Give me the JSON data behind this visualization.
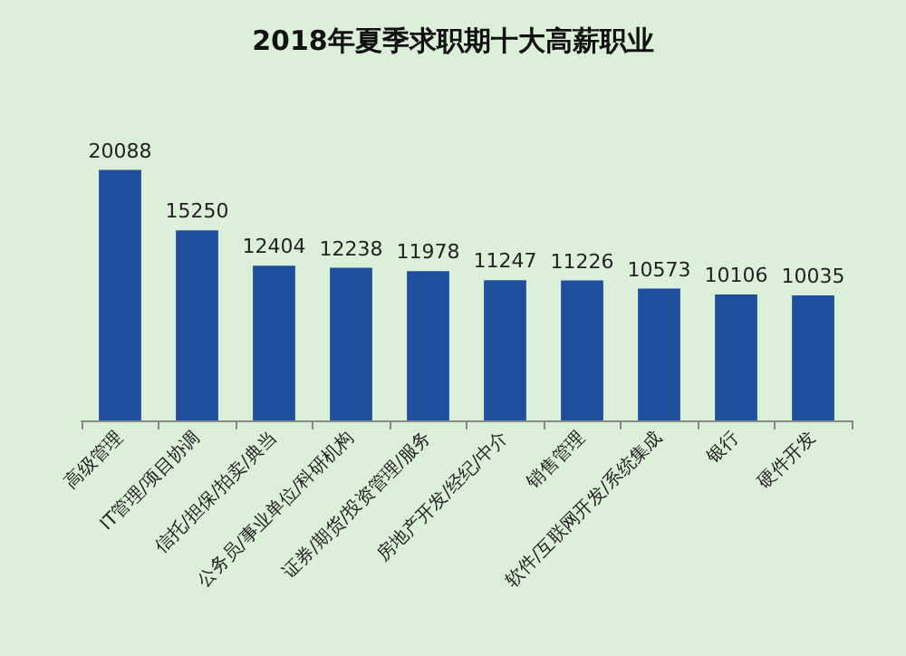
{
  "chart_data": {
    "type": "bar",
    "title": "2018年夏季求职期十大高薪职业",
    "categories": [
      "高级管理",
      "IT管理/项目协调",
      "信托/担保/拍卖/典当",
      "公务员/事业单位/科研机构",
      "证券/期货/投资管理/服务",
      "房地产开发/经纪/中介",
      "销售管理",
      "软件/互联网开发/系统集成",
      "银行",
      "硬件开发"
    ],
    "values": [
      20088,
      15250,
      12404,
      12238,
      11978,
      11247,
      11226,
      10573,
      10106,
      10035
    ],
    "color": "#1f4e9c",
    "data_labels": true
  }
}
